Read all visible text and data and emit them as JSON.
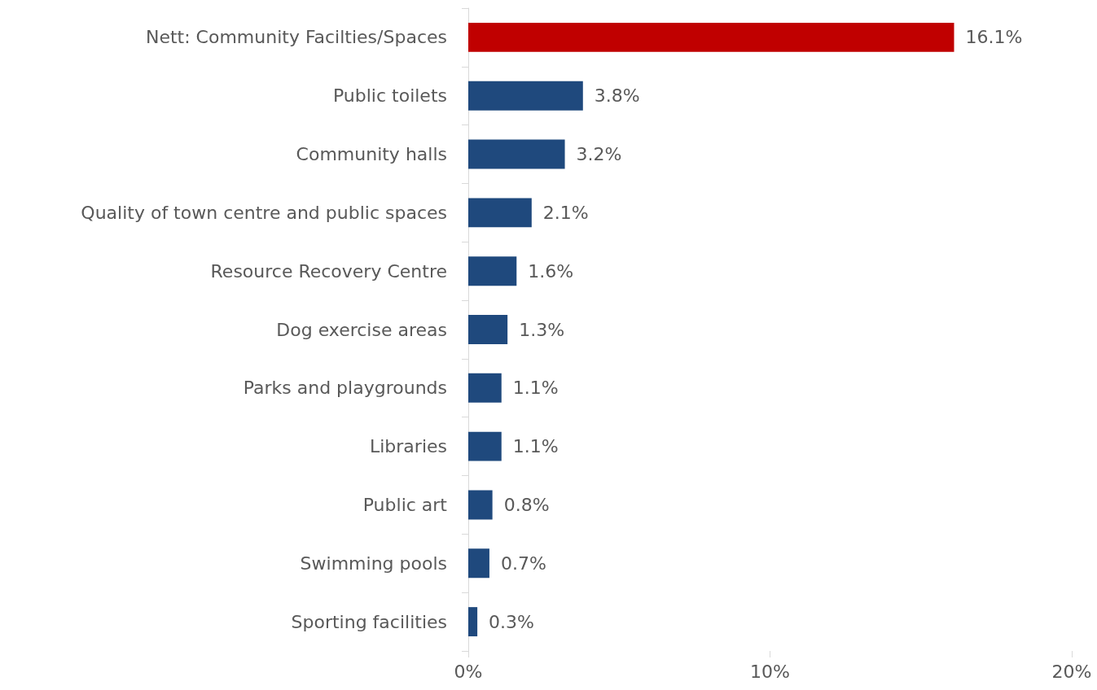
{
  "chart_data": {
    "type": "bar",
    "orientation": "horizontal",
    "categories": [
      "Nett: Community Facilties/Spaces",
      "Public toilets",
      "Community halls",
      "Quality of town centre and public spaces",
      "Resource Recovery Centre",
      "Dog exercise areas",
      "Parks and playgrounds",
      "Libraries",
      "Public art",
      "Swimming pools",
      "Sporting facilities"
    ],
    "values": [
      16.1,
      3.8,
      3.2,
      2.1,
      1.6,
      1.3,
      1.1,
      1.1,
      0.8,
      0.7,
      0.3
    ],
    "colors": [
      "#c00000",
      "#1f497d",
      "#1f497d",
      "#1f497d",
      "#1f497d",
      "#1f497d",
      "#1f497d",
      "#1f497d",
      "#1f497d",
      "#1f497d",
      "#1f497d"
    ],
    "value_labels": [
      "16.1%",
      "3.8%",
      "3.2%",
      "2.1%",
      "1.6%",
      "1.3%",
      "1.1%",
      "1.1%",
      "0.8%",
      "0.7%",
      "0.3%"
    ],
    "xlim": [
      0,
      20
    ],
    "xticks": [
      {
        "value": 0,
        "label": "0%"
      },
      {
        "value": 10,
        "label": "10%"
      },
      {
        "value": 20,
        "label": "20%"
      }
    ]
  }
}
